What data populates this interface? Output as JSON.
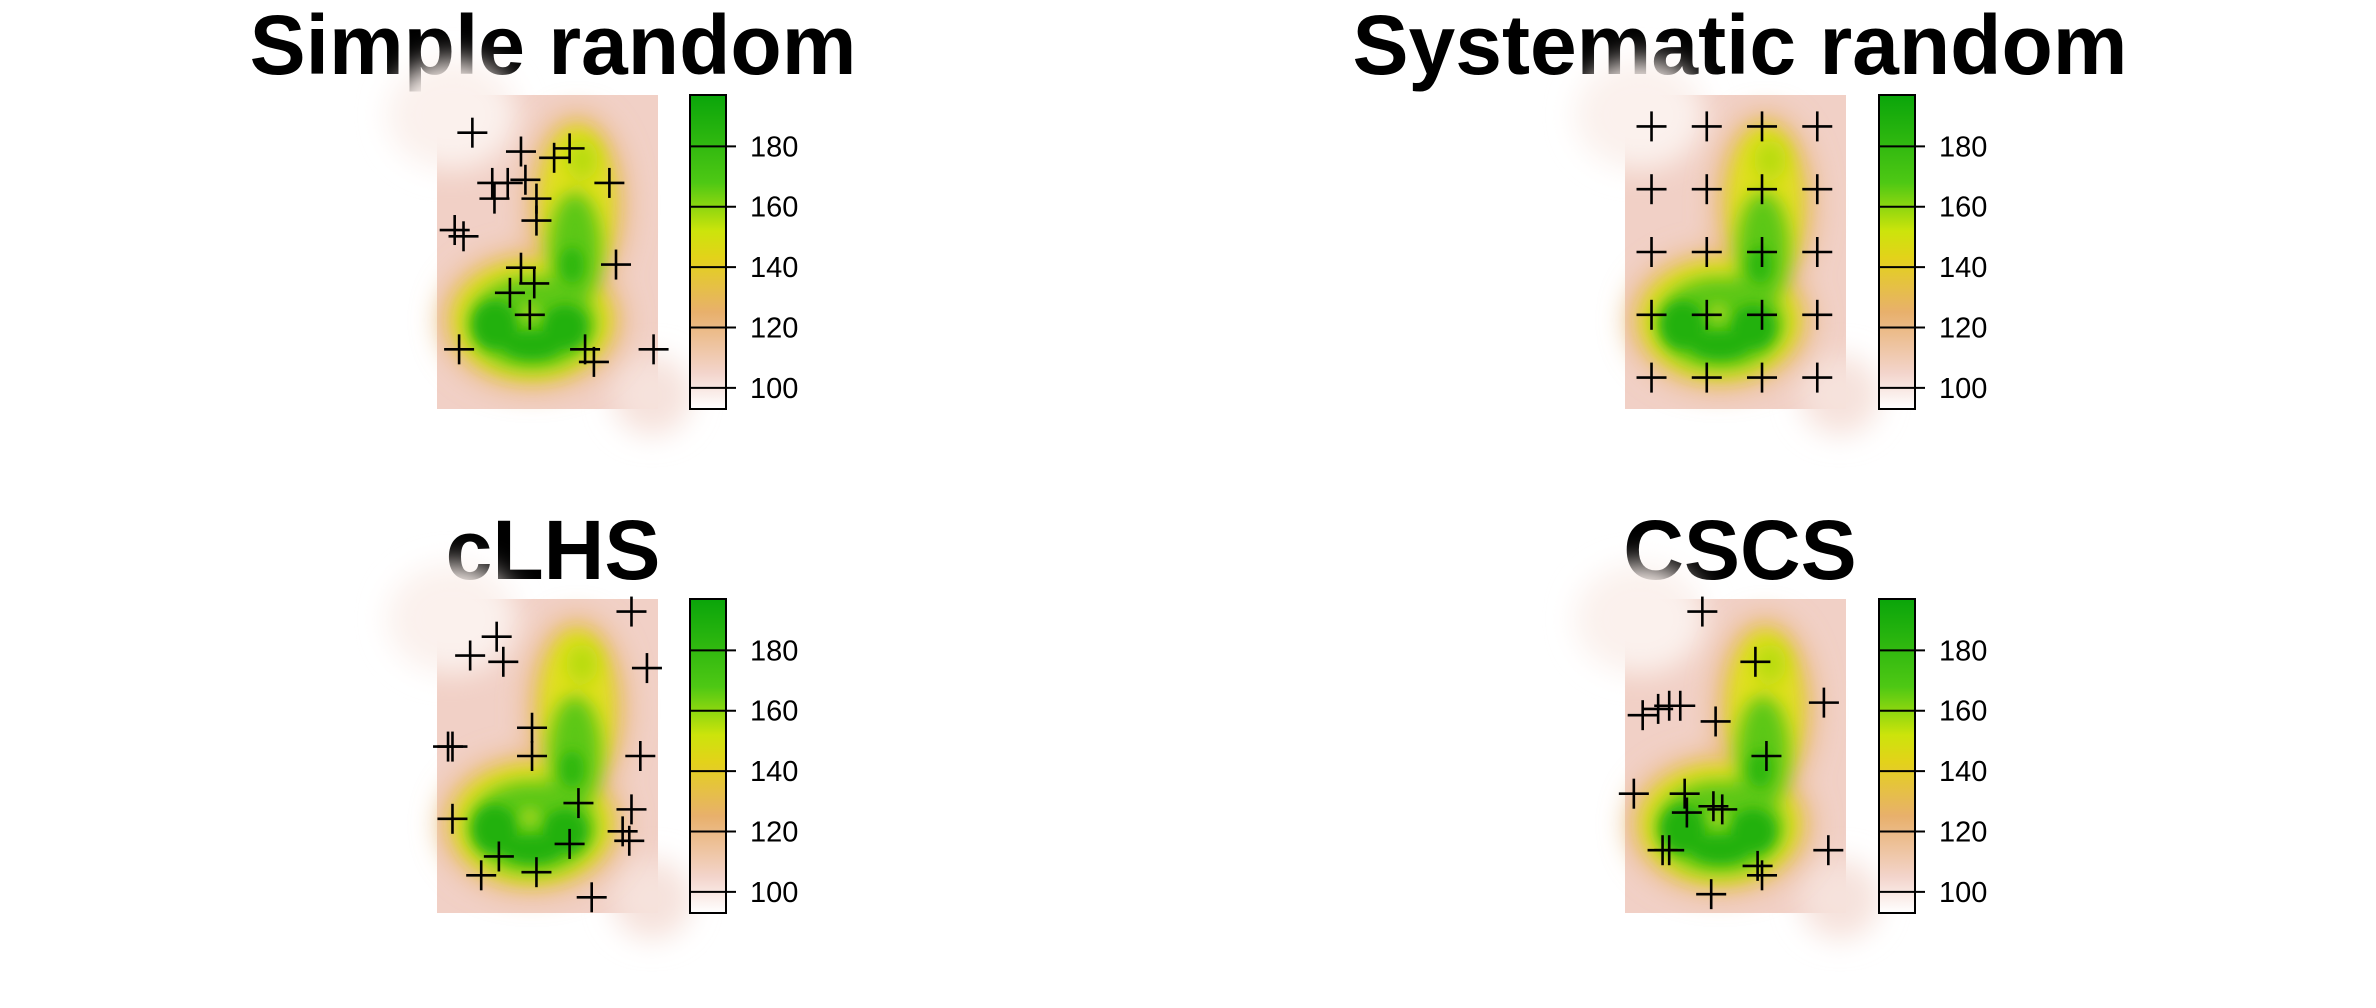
{
  "colorscale": {
    "min": 93,
    "max": 197,
    "ticks": [
      100,
      120,
      140,
      160,
      180
    ],
    "stops": [
      {
        "value": 93,
        "color": "#ffffff"
      },
      {
        "value": 105,
        "color": "#f3d4cb"
      },
      {
        "value": 125,
        "color": "#e8b06c"
      },
      {
        "value": 143,
        "color": "#e3d21a"
      },
      {
        "value": 152,
        "color": "#cce40b"
      },
      {
        "value": 168,
        "color": "#4ec814"
      },
      {
        "value": 197,
        "color": "#0aa50a"
      }
    ]
  },
  "chart_data": [
    {
      "type": "heatmap",
      "title": "Simple random",
      "marker": "plus",
      "points": [
        [
          0.16,
          0.12
        ],
        [
          0.38,
          0.18
        ],
        [
          0.25,
          0.28
        ],
        [
          0.32,
          0.28
        ],
        [
          0.26,
          0.33
        ],
        [
          0.45,
          0.33
        ],
        [
          0.53,
          0.2
        ],
        [
          0.6,
          0.17
        ],
        [
          0.78,
          0.28
        ],
        [
          0.12,
          0.45
        ],
        [
          0.08,
          0.43
        ],
        [
          0.45,
          0.4
        ],
        [
          0.38,
          0.55
        ],
        [
          0.44,
          0.6
        ],
        [
          0.33,
          0.63
        ],
        [
          0.42,
          0.7
        ],
        [
          0.81,
          0.54
        ],
        [
          0.67,
          0.81
        ],
        [
          0.71,
          0.85
        ],
        [
          0.1,
          0.81
        ],
        [
          0.98,
          0.81
        ],
        [
          0.4,
          0.27
        ]
      ]
    },
    {
      "type": "heatmap",
      "title": "Systematic random",
      "marker": "plus",
      "points": [
        [
          0.12,
          0.1
        ],
        [
          0.37,
          0.1
        ],
        [
          0.62,
          0.1
        ],
        [
          0.87,
          0.1
        ],
        [
          0.12,
          0.3
        ],
        [
          0.37,
          0.3
        ],
        [
          0.62,
          0.3
        ],
        [
          0.87,
          0.3
        ],
        [
          0.12,
          0.5
        ],
        [
          0.37,
          0.5
        ],
        [
          0.62,
          0.5
        ],
        [
          0.87,
          0.5
        ],
        [
          0.12,
          0.7
        ],
        [
          0.37,
          0.7
        ],
        [
          0.62,
          0.7
        ],
        [
          0.87,
          0.7
        ],
        [
          0.12,
          0.9
        ],
        [
          0.37,
          0.9
        ],
        [
          0.62,
          0.9
        ],
        [
          0.87,
          0.9
        ]
      ]
    },
    {
      "type": "heatmap",
      "title": "cLHS",
      "marker": "plus",
      "points": [
        [
          0.88,
          0.04
        ],
        [
          0.27,
          0.12
        ],
        [
          0.15,
          0.18
        ],
        [
          0.3,
          0.2
        ],
        [
          0.95,
          0.22
        ],
        [
          0.43,
          0.41
        ],
        [
          0.05,
          0.47
        ],
        [
          0.07,
          0.47
        ],
        [
          0.43,
          0.5
        ],
        [
          0.92,
          0.5
        ],
        [
          0.64,
          0.65
        ],
        [
          0.88,
          0.67
        ],
        [
          0.07,
          0.7
        ],
        [
          0.84,
          0.74
        ],
        [
          0.87,
          0.77
        ],
        [
          0.6,
          0.78
        ],
        [
          0.28,
          0.82
        ],
        [
          0.2,
          0.88
        ],
        [
          0.45,
          0.87
        ],
        [
          0.7,
          0.95
        ]
      ]
    },
    {
      "type": "heatmap",
      "title": "CSCS",
      "marker": "plus",
      "points": [
        [
          0.35,
          0.04
        ],
        [
          0.59,
          0.2
        ],
        [
          0.9,
          0.33
        ],
        [
          0.2,
          0.34
        ],
        [
          0.25,
          0.34
        ],
        [
          0.08,
          0.37
        ],
        [
          0.15,
          0.35
        ],
        [
          0.41,
          0.39
        ],
        [
          0.64,
          0.5
        ],
        [
          0.04,
          0.62
        ],
        [
          0.27,
          0.62
        ],
        [
          0.28,
          0.68
        ],
        [
          0.4,
          0.66
        ],
        [
          0.44,
          0.67
        ],
        [
          0.92,
          0.8
        ],
        [
          0.6,
          0.85
        ],
        [
          0.62,
          0.88
        ],
        [
          0.17,
          0.8
        ],
        [
          0.2,
          0.8
        ],
        [
          0.39,
          0.94
        ]
      ]
    }
  ]
}
